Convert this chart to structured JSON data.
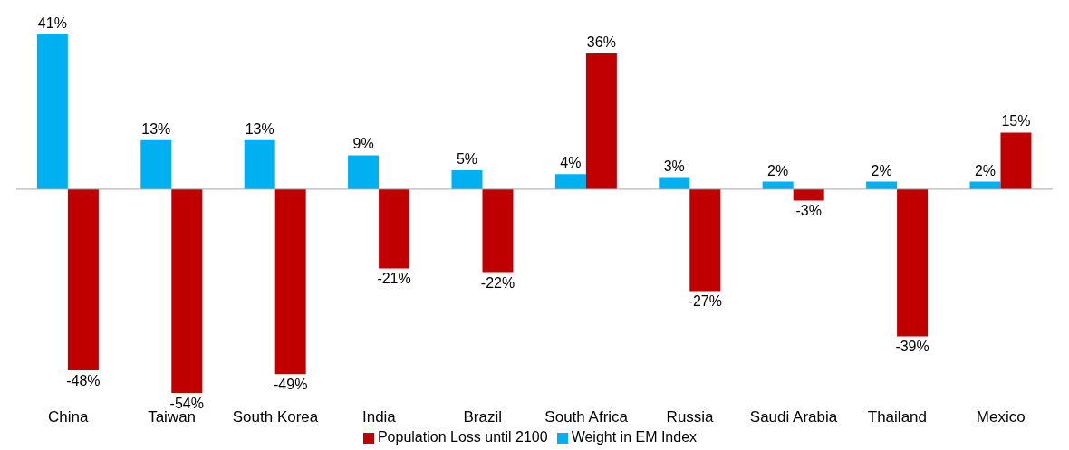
{
  "chart_data": {
    "type": "bar",
    "categories": [
      "China",
      "Taiwan",
      "South Korea",
      "India",
      "Brazil",
      "South Africa",
      "Russia",
      "Saudi Arabia",
      "Thailand",
      "Mexico"
    ],
    "series": [
      {
        "name": "Weight in EM Index",
        "color": "#00b0f0",
        "values": [
          41,
          13,
          13,
          9,
          5,
          4,
          3,
          2,
          2,
          2
        ],
        "value_labels": [
          "41%",
          "13%",
          "13%",
          "9%",
          "5%",
          "4%",
          "3%",
          "2%",
          "2%",
          "2%"
        ]
      },
      {
        "name": "Population Loss until 2100",
        "color": "#c00000",
        "values": [
          -48,
          -54,
          -49,
          -21,
          -22,
          36,
          -27,
          -3,
          -39,
          15
        ],
        "value_labels": [
          "-48%",
          "-54%",
          "-49%",
          "-21%",
          "-22%",
          "36%",
          "-27%",
          "-3%",
          "-39%",
          "15%"
        ]
      }
    ],
    "legend": "bottom",
    "grid": false
  }
}
